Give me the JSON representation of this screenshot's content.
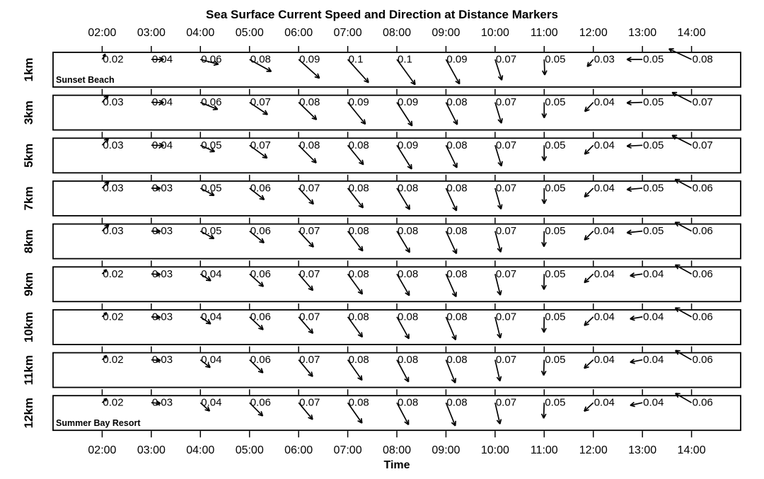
{
  "title": "Sea Surface Current Speed and Direction at Distance Markers",
  "axis": {
    "x_label": "Time",
    "x_ticks": [
      "02:00",
      "03:00",
      "04:00",
      "05:00",
      "06:00",
      "07:00",
      "08:00",
      "09:00",
      "10:00",
      "11:00",
      "12:00",
      "13:00",
      "14:00"
    ]
  },
  "colors": {
    "foreground": "#000000",
    "background": "#ffffff"
  },
  "chart_data": {
    "type": "vector-stick",
    "title": "Sea Surface Current Speed and Direction at Distance Markers",
    "xlabel": "Time",
    "x_tick_labels": [
      "02:00",
      "03:00",
      "04:00",
      "05:00",
      "06:00",
      "07:00",
      "08:00",
      "09:00",
      "10:00",
      "11:00",
      "12:00",
      "13:00",
      "14:00"
    ],
    "value_format_example": "0.1",
    "legend": "arrow length proportional to speed, arrow angle = current direction",
    "rows": [
      {
        "label": "1km",
        "annotation": "Sunset Beach",
        "speeds": [
          0.02,
          0.04,
          0.06,
          0.08,
          0.09,
          0.1,
          0.1,
          0.09,
          0.07,
          0.05,
          0.03,
          0.05,
          0.08
        ],
        "directions_compass_deg": [
          30,
          90,
          105,
          119,
          132,
          138,
          144,
          151,
          162,
          178,
          220,
          270,
          295
        ]
      },
      {
        "label": "3km",
        "annotation": null,
        "speeds": [
          0.03,
          0.04,
          0.06,
          0.07,
          0.08,
          0.09,
          0.09,
          0.08,
          0.07,
          0.05,
          0.04,
          0.05,
          0.07
        ],
        "directions_compass_deg": [
          40,
          91,
          112,
          124,
          134,
          141,
          147,
          153,
          163,
          180,
          223,
          268,
          297
        ]
      },
      {
        "label": "5km",
        "annotation": null,
        "speeds": [
          0.03,
          0.04,
          0.05,
          0.07,
          0.08,
          0.08,
          0.09,
          0.08,
          0.07,
          0.05,
          0.04,
          0.05,
          0.07
        ],
        "directions_compass_deg": [
          42,
          91,
          114,
          126,
          135,
          141,
          148,
          154,
          163,
          180,
          224,
          267,
          297
        ]
      },
      {
        "label": "7km",
        "annotation": null,
        "speeds": [
          0.03,
          0.03,
          0.05,
          0.06,
          0.07,
          0.08,
          0.08,
          0.08,
          0.07,
          0.05,
          0.04,
          0.05,
          0.06
        ],
        "directions_compass_deg": [
          45,
          92,
          118,
          128,
          137,
          142,
          149,
          155,
          164,
          180,
          225,
          265,
          298
        ]
      },
      {
        "label": "8km",
        "annotation": null,
        "speeds": [
          0.03,
          0.03,
          0.05,
          0.06,
          0.07,
          0.08,
          0.08,
          0.08,
          0.07,
          0.05,
          0.04,
          0.05,
          0.06
        ],
        "directions_compass_deg": [
          45,
          92,
          119,
          129,
          137,
          143,
          149,
          155,
          165,
          181,
          225,
          264,
          298
        ]
      },
      {
        "label": "9km",
        "annotation": null,
        "speeds": [
          0.02,
          0.03,
          0.04,
          0.06,
          0.07,
          0.08,
          0.08,
          0.08,
          0.07,
          0.05,
          0.04,
          0.04,
          0.06
        ],
        "directions_compass_deg": [
          45,
          93,
          123,
          132,
          139,
          144,
          150,
          156,
          166,
          181,
          226,
          262,
          299
        ]
      },
      {
        "label": "10km",
        "annotation": null,
        "speeds": [
          0.02,
          0.03,
          0.04,
          0.06,
          0.07,
          0.08,
          0.08,
          0.08,
          0.07,
          0.05,
          0.04,
          0.04,
          0.06
        ],
        "directions_compass_deg": [
          46,
          93,
          124,
          133,
          139,
          144,
          151,
          157,
          166,
          181,
          226,
          261,
          299
        ]
      },
      {
        "label": "11km",
        "annotation": null,
        "speeds": [
          0.02,
          0.03,
          0.04,
          0.06,
          0.07,
          0.08,
          0.08,
          0.08,
          0.07,
          0.05,
          0.04,
          0.04,
          0.06
        ],
        "directions_compass_deg": [
          46,
          94,
          128,
          134,
          140,
          145,
          152,
          158,
          167,
          182,
          227,
          259,
          300
        ]
      },
      {
        "label": "12km",
        "annotation": "Summer Bay Resort",
        "speeds": [
          0.02,
          0.03,
          0.04,
          0.06,
          0.07,
          0.08,
          0.08,
          0.08,
          0.07,
          0.05,
          0.04,
          0.04,
          0.06
        ],
        "directions_compass_deg": [
          47,
          94,
          132,
          135,
          140,
          145,
          152,
          158,
          167,
          182,
          227,
          258,
          300
        ]
      }
    ]
  }
}
